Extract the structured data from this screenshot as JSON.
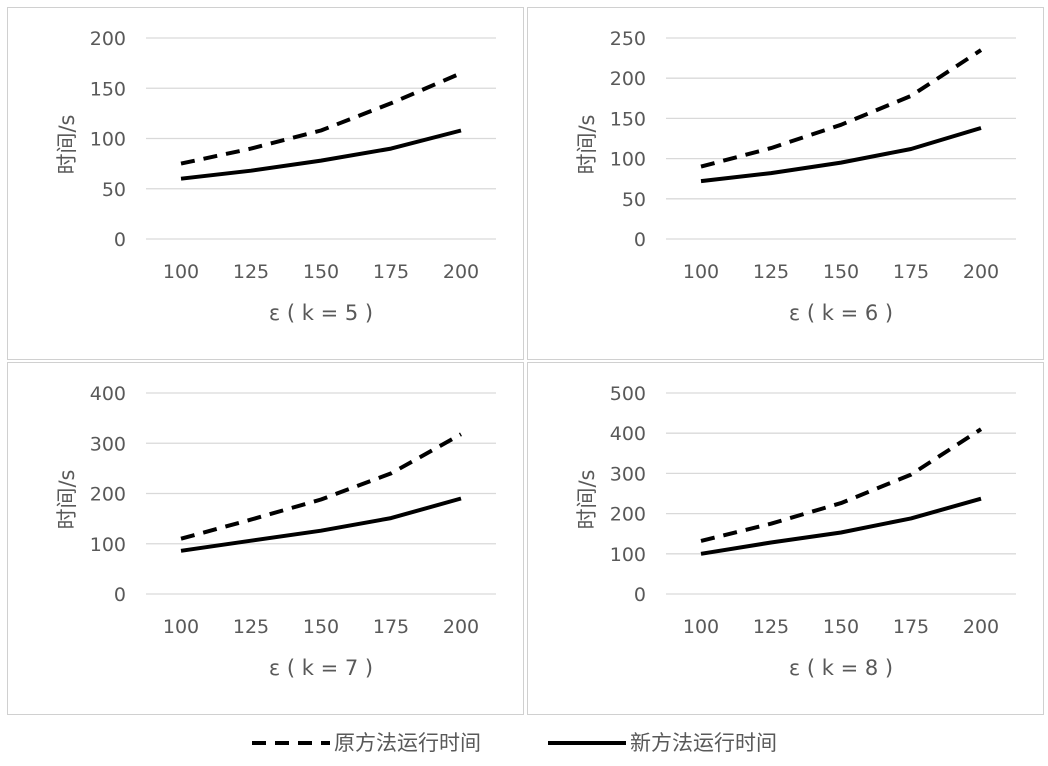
{
  "chart_data": [
    {
      "type": "line",
      "xlabel": "ε ( k = 5 )",
      "ylabel": "时间/s",
      "categories": [
        "100",
        "125",
        "150",
        "175",
        "200"
      ],
      "ylim": [
        0,
        200
      ],
      "yticks": [
        0,
        50,
        100,
        150,
        200
      ],
      "grid": true,
      "series": [
        {
          "name": "原方法运行时间",
          "values": [
            75,
            90,
            108,
            135,
            165
          ],
          "style": "dashed"
        },
        {
          "name": "新方法运行时间",
          "values": [
            60,
            68,
            78,
            90,
            108
          ],
          "style": "solid"
        }
      ]
    },
    {
      "type": "line",
      "xlabel": "ε ( k = 6 )",
      "ylabel": "时间/s",
      "categories": [
        "100",
        "125",
        "150",
        "175",
        "200"
      ],
      "ylim": [
        0,
        250
      ],
      "yticks": [
        0,
        50,
        100,
        150,
        200,
        250
      ],
      "grid": true,
      "series": [
        {
          "name": "原方法运行时间",
          "values": [
            90,
            113,
            142,
            178,
            235
          ],
          "style": "dashed"
        },
        {
          "name": "新方法运行时间",
          "values": [
            72,
            82,
            95,
            112,
            138
          ],
          "style": "solid"
        }
      ]
    },
    {
      "type": "line",
      "xlabel": "ε ( k = 7 )",
      "ylabel": "时间/s",
      "categories": [
        "100",
        "125",
        "150",
        "175",
        "200"
      ],
      "ylim": [
        0,
        400
      ],
      "yticks": [
        0,
        100,
        200,
        300,
        400
      ],
      "grid": true,
      "series": [
        {
          "name": "原方法运行时间",
          "values": [
            110,
            148,
            188,
            240,
            318
          ],
          "style": "dashed"
        },
        {
          "name": "新方法运行时间",
          "values": [
            86,
            106,
            126,
            151,
            190
          ],
          "style": "solid"
        }
      ]
    },
    {
      "type": "line",
      "xlabel": "ε ( k = 8 )",
      "ylabel": "时间/s",
      "categories": [
        "100",
        "125",
        "150",
        "175",
        "200"
      ],
      "ylim": [
        0,
        500
      ],
      "yticks": [
        0,
        100,
        200,
        300,
        400,
        500
      ],
      "grid": true,
      "series": [
        {
          "name": "原方法运行时间",
          "values": [
            132,
            175,
            226,
            297,
            410
          ],
          "style": "dashed"
        },
        {
          "name": "新方法运行时间",
          "values": [
            100,
            128,
            153,
            188,
            237
          ],
          "style": "solid"
        }
      ]
    }
  ],
  "legend": {
    "position": "bottom",
    "items": [
      {
        "label": "原方法运行时间",
        "style": "dashed"
      },
      {
        "label": "新方法运行时间",
        "style": "solid"
      }
    ]
  }
}
